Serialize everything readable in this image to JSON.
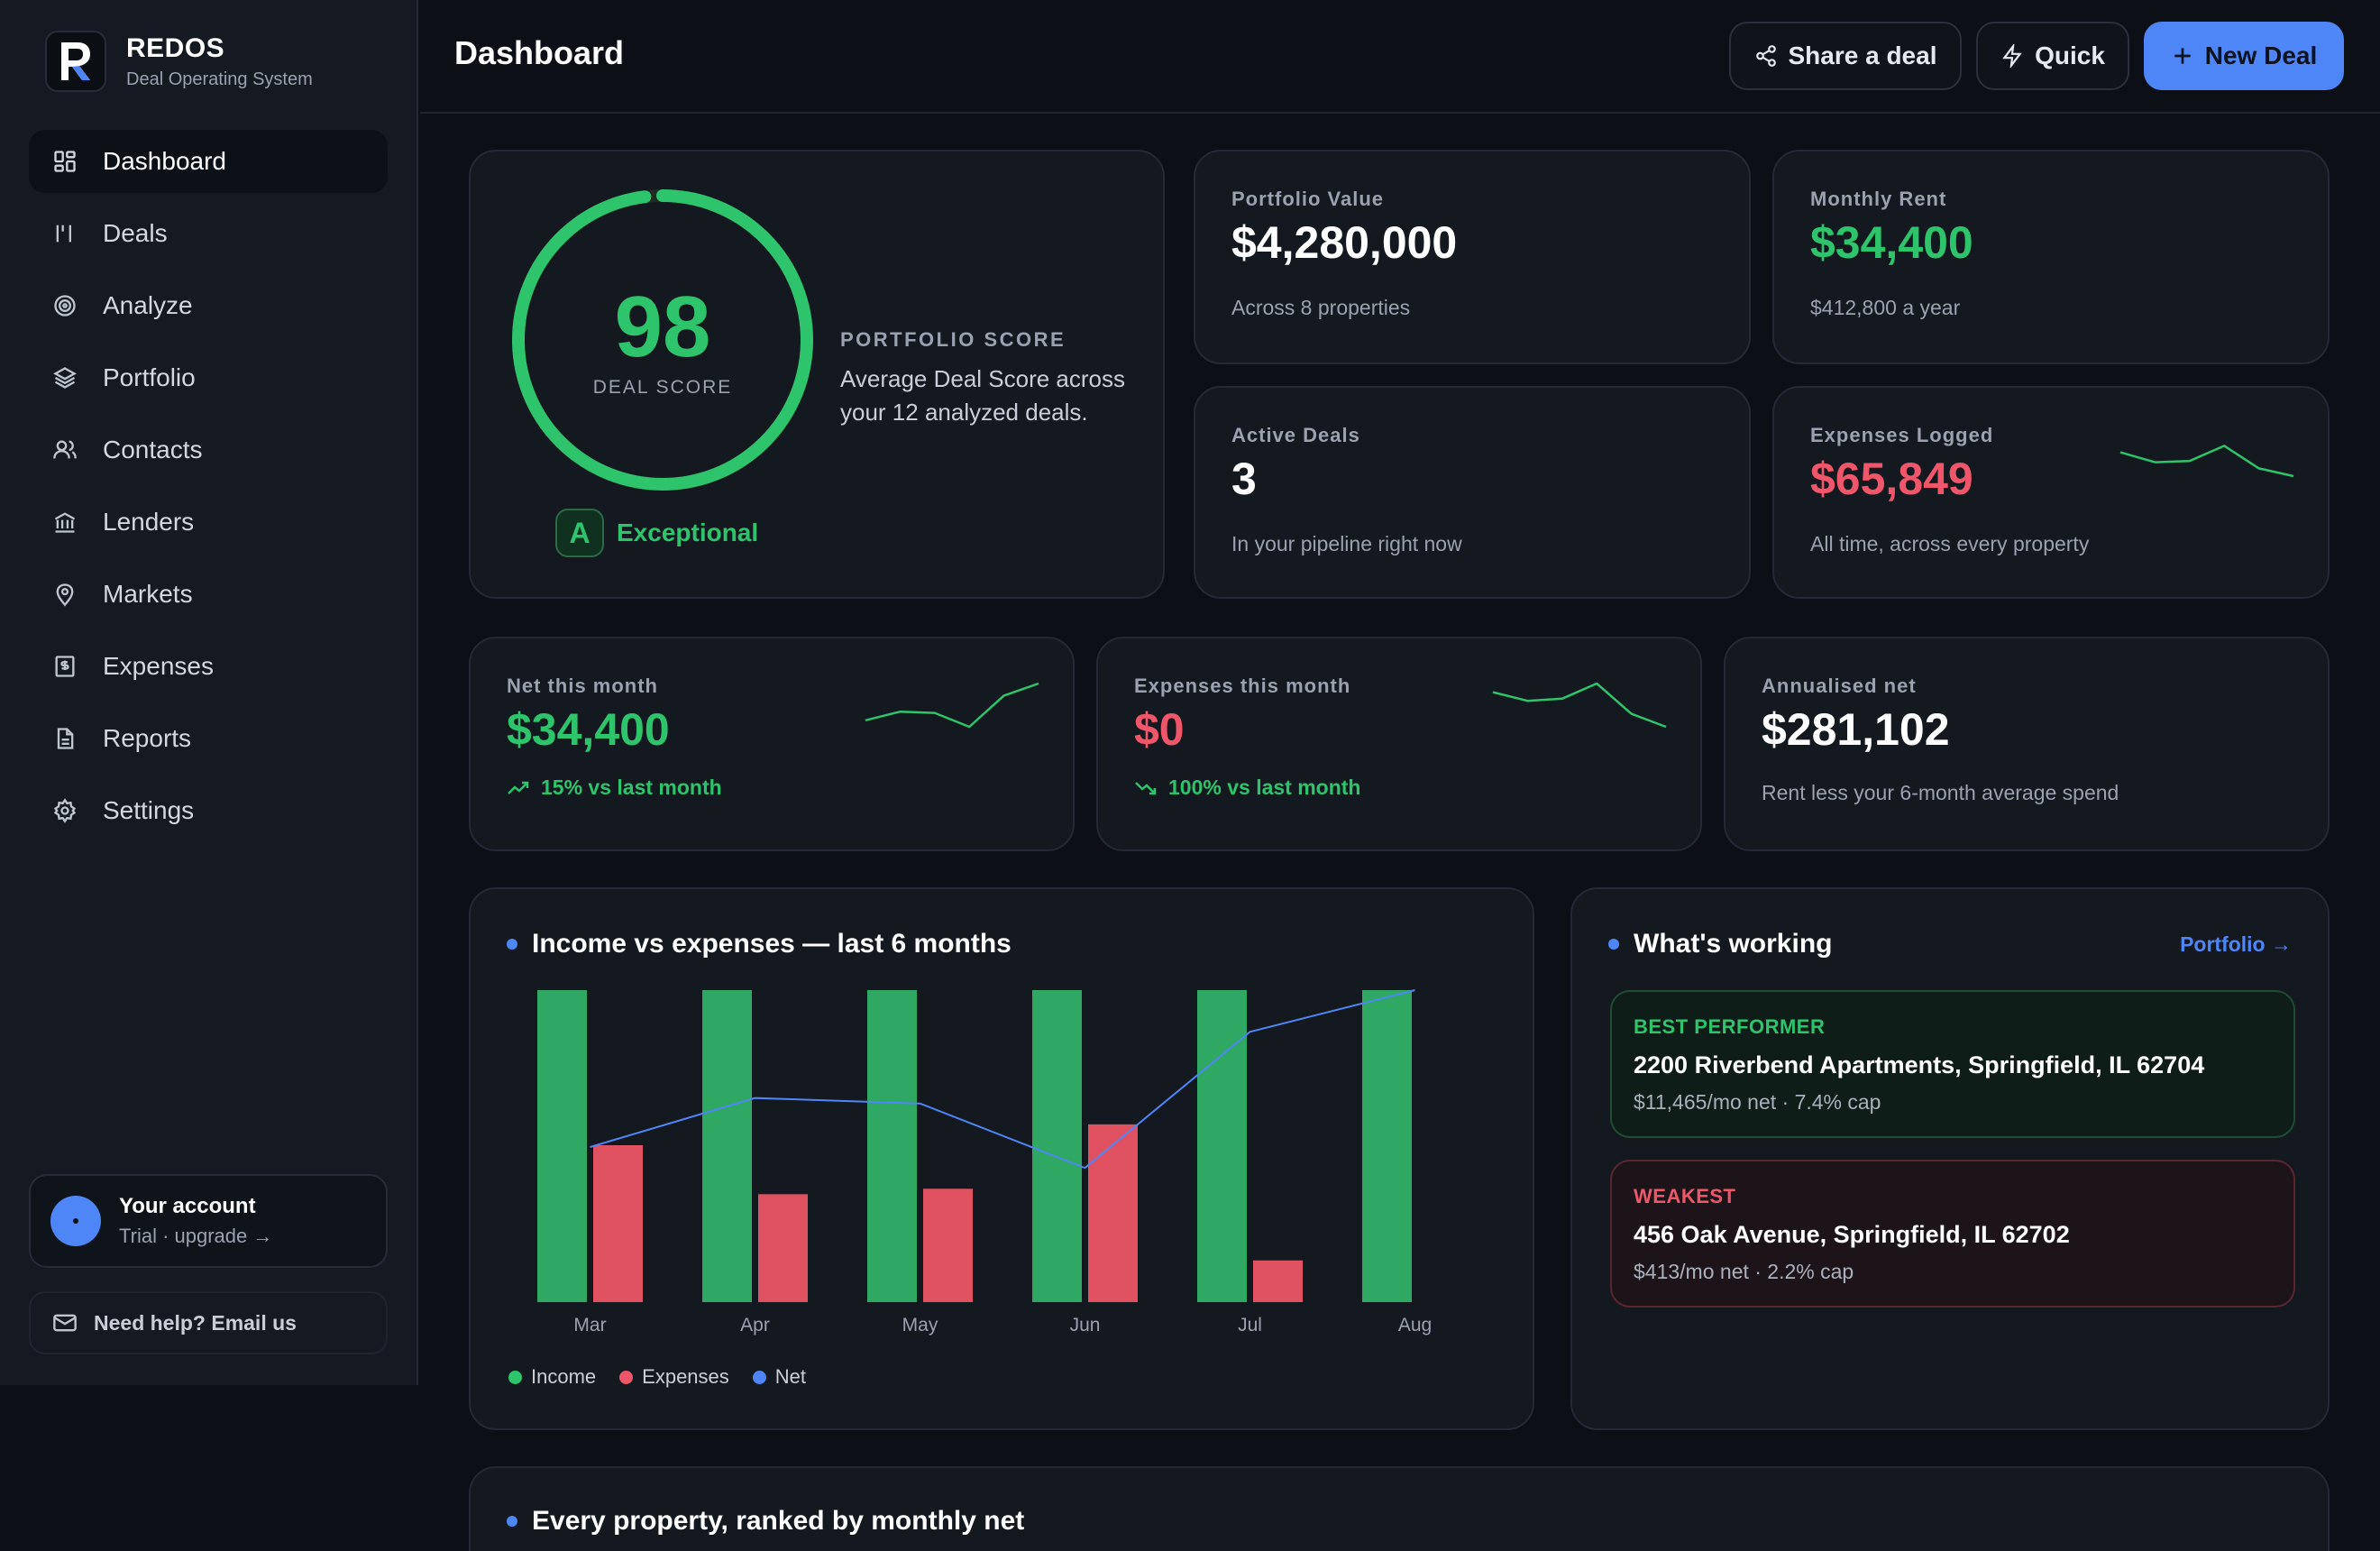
{
  "brand": {
    "name": "REDOS",
    "tagline": "Deal Operating System"
  },
  "sidebar": {
    "items": [
      {
        "label": "Dashboard",
        "icon": "grid-icon"
      },
      {
        "label": "Deals",
        "icon": "bars-icon"
      },
      {
        "label": "Analyze",
        "icon": "target-icon"
      },
      {
        "label": "Portfolio",
        "icon": "layers-icon"
      },
      {
        "label": "Contacts",
        "icon": "users-icon"
      },
      {
        "label": "Lenders",
        "icon": "bank-icon"
      },
      {
        "label": "Markets",
        "icon": "map-pin-icon"
      },
      {
        "label": "Expenses",
        "icon": "receipt-icon"
      },
      {
        "label": "Reports",
        "icon": "document-icon"
      },
      {
        "label": "Settings",
        "icon": "gear-icon"
      }
    ],
    "account": {
      "title": "Your account",
      "subtitle": "Trial · upgrade →"
    },
    "help": "Need help? Email us"
  },
  "header": {
    "title": "Dashboard",
    "share_label": "Share a deal",
    "quick_label": "Quick",
    "new_label": "New Deal"
  },
  "score": {
    "value": "98",
    "label": "DEAL SCORE",
    "grade": "A",
    "grade_text": "Exceptional",
    "title": "PORTFOLIO SCORE",
    "desc_line1": "Average Deal Score across",
    "desc_line2": "your 12 analyzed deals.",
    "fill": 0.98
  },
  "stats": {
    "portfolio_value": {
      "label": "Portfolio Value",
      "value": "$4,280,000",
      "sub": "Across 8 properties"
    },
    "monthly_rent": {
      "label": "Monthly Rent",
      "value": "$34,400",
      "sub": "$412,800 a year"
    },
    "active_deals": {
      "label": "Active Deals",
      "value": "3",
      "sub": "In your pipeline right now"
    },
    "expenses_logged": {
      "label": "Expenses Logged",
      "value": "$65,849",
      "sub": "All time, across every property"
    },
    "net_month": {
      "label": "Net this month",
      "value": "$34,400",
      "trend": "15% vs last month"
    },
    "expenses_month": {
      "label": "Expenses this month",
      "value": "$0",
      "trend": "100% vs last month"
    },
    "annualised": {
      "label": "Annualised net",
      "value": "$281,102",
      "sub": "Rent less your 6-month average spend"
    }
  },
  "colors": {
    "accent": "#4f86f7",
    "income": "#2ea862",
    "expenses": "#e05262",
    "net": "#4f86f7"
  },
  "income_chart": {
    "title": "Income vs expenses — last 6 months",
    "legend": [
      "Income",
      "Expenses",
      "Net"
    ]
  },
  "chart_data": {
    "type": "bar",
    "categories": [
      "Mar",
      "Apr",
      "May",
      "Jun",
      "Jul",
      "Aug"
    ],
    "series": [
      {
        "name": "Income",
        "values": [
          34400,
          34400,
          34400,
          34400,
          34400,
          34400
        ]
      },
      {
        "name": "Expenses",
        "values": [
          17300,
          11900,
          12500,
          19600,
          4600,
          0
        ]
      },
      {
        "name": "Net",
        "values": [
          17100,
          22500,
          21900,
          14800,
          29800,
          34400
        ]
      }
    ],
    "title": "Income vs expenses — last 6 months",
    "ylim": [
      0,
      34400
    ],
    "legend_position": "bottom-left"
  },
  "working": {
    "title": "What's working",
    "link": "Portfolio →",
    "best": {
      "tag": "BEST PERFORMER",
      "name": "2200 Riverbend Apartments, Springfield, IL 62704",
      "meta": "$11,465/mo net · 7.4% cap"
    },
    "worst": {
      "tag": "WEAKEST",
      "name": "456 Oak Avenue, Springfield, IL 62702",
      "meta": "$413/mo net · 2.2% cap"
    }
  },
  "ranked": {
    "title": "Every property, ranked by monthly net"
  },
  "sparklines": {
    "expenses_logged": [
      0.55,
      0.32,
      0.35,
      0.7,
      0.18,
      0.0
    ],
    "net_month": [
      0.15,
      0.35,
      0.32,
      0.0,
      0.72,
      1.0
    ],
    "expenses_month": [
      0.8,
      0.6,
      0.65,
      1.0,
      0.3,
      0.0
    ]
  }
}
